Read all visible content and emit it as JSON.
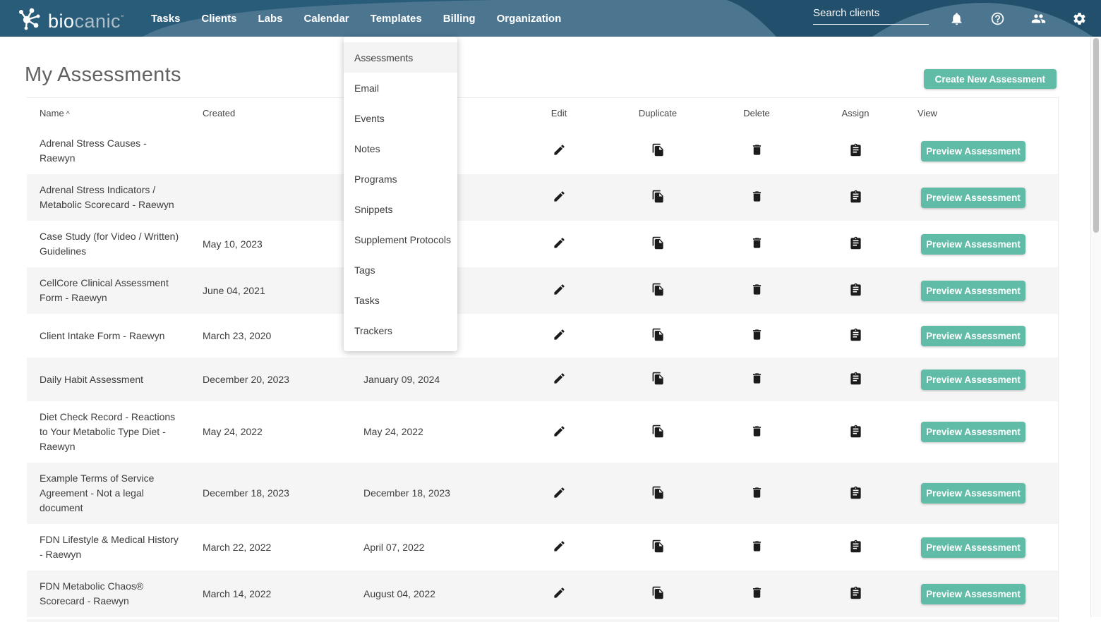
{
  "nav": {
    "brand_bio": "bio",
    "brand_canic": "canic",
    "brand_tm": "°",
    "items": [
      "Tasks",
      "Clients",
      "Labs",
      "Calendar",
      "Templates",
      "Billing",
      "Organization"
    ],
    "search_placeholder": "Search clients",
    "icon_names": [
      "bell-icon",
      "help-icon",
      "users-icon",
      "gear-icon"
    ]
  },
  "templates_menu": {
    "items": [
      "Assessments",
      "Email",
      "Events",
      "Notes",
      "Programs",
      "Snippets",
      "Supplement Protocols",
      "Tags",
      "Tasks",
      "Trackers"
    ],
    "active_item": "Assessments"
  },
  "page": {
    "title": "My Assessments",
    "create_button": "Create New Assessment"
  },
  "table": {
    "headers": {
      "name": "Name",
      "sort_indicator": "^",
      "created": "Created",
      "updated": "",
      "edit": "Edit",
      "duplicate": "Duplicate",
      "delete": "Delete",
      "assign": "Assign",
      "view": "View"
    },
    "preview_label": "Preview Assessment",
    "rows": [
      {
        "name": "Adrenal Stress Causes - Raewyn",
        "created": "",
        "updated": ""
      },
      {
        "name": "Adrenal Stress Indicators / Metabolic Scorecard - Raewyn",
        "created": "",
        "updated": ""
      },
      {
        "name": "Case Study (for Video / Written) Guidelines",
        "created": "May 10, 2023",
        "updated": ""
      },
      {
        "name": "CellCore Clinical Assessment Form - Raewyn",
        "created": "June 04, 2021",
        "updated": ""
      },
      {
        "name": "Client Intake Form - Raewyn",
        "created": "March 23, 2020",
        "updated": ""
      },
      {
        "name": "Daily Habit Assessment",
        "created": "December 20, 2023",
        "updated": "January 09, 2024"
      },
      {
        "name": "Diet Check Record - Reactions to Your Metabolic Type Diet - Raewyn",
        "created": "May 24, 2022",
        "updated": "May 24, 2022"
      },
      {
        "name": "Example Terms of Service Agreement - Not a legal document",
        "created": "December 18, 2023",
        "updated": "December 18, 2023"
      },
      {
        "name": "FDN Lifestyle & Medical History - Raewyn",
        "created": "March 22, 2022",
        "updated": "April 07, 2022"
      },
      {
        "name": "FDN Metabolic Chaos® Scorecard - Raewyn",
        "created": "March 14, 2022",
        "updated": "August 04, 2022"
      }
    ]
  },
  "colors": {
    "accent_teal": "#60bca7",
    "navbar_base": "#4c7590",
    "navbar_dark_left": "#295c78",
    "navbar_dark_right": "#224f6b",
    "row_stripe": "#f5f5f5",
    "text_dark": "#3d3d3d",
    "title_gray": "#616161"
  }
}
